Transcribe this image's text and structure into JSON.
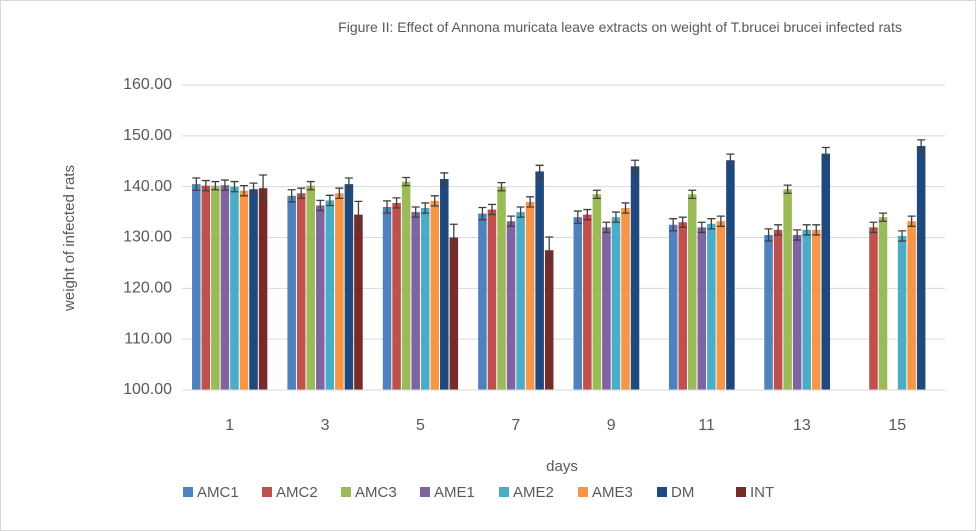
{
  "chart_data": {
    "type": "bar",
    "title": "Figure II: Effect of Annona muricata leave extracts on weight of T.brucei brucei infected rats",
    "xlabel": "days",
    "ylabel": "weight of infected rats",
    "categories": [
      "1",
      "3",
      "5",
      "7",
      "9",
      "11",
      "13",
      "15"
    ],
    "ylim": [
      100,
      160
    ],
    "yticks": [
      {
        "value": 100,
        "label": "100.00"
      },
      {
        "value": 110,
        "label": "110.00"
      },
      {
        "value": 120,
        "label": "120.00"
      },
      {
        "value": 130,
        "label": "130.00"
      },
      {
        "value": 140,
        "label": "140.00"
      },
      {
        "value": 150,
        "label": "150.00"
      },
      {
        "value": 160,
        "label": "160.00"
      }
    ],
    "grid": true,
    "legend": "bottom",
    "series": [
      {
        "name": "AMC1",
        "color": "#4f81bd",
        "values": [
          140.5,
          138.2,
          136,
          134.7,
          134,
          132.5,
          130.5,
          null
        ],
        "errors": [
          1.2,
          1.2,
          1.2,
          1.2,
          1.2,
          1.2,
          1.2,
          null
        ]
      },
      {
        "name": "AMC2",
        "color": "#c0504d",
        "values": [
          140.2,
          138.7,
          136.8,
          135.5,
          134.5,
          133,
          131.5,
          132
        ],
        "errors": [
          1,
          1,
          1,
          1,
          1,
          1,
          1,
          1
        ]
      },
      {
        "name": "AMC3",
        "color": "#9bbb59",
        "values": [
          140.2,
          140.2,
          141,
          140,
          138.5,
          138.5,
          139.5,
          134
        ],
        "errors": [
          0.8,
          0.8,
          0.8,
          0.8,
          0.8,
          0.8,
          0.8,
          0.8
        ]
      },
      {
        "name": "AME1",
        "color": "#8064a2",
        "values": [
          140.3,
          136.3,
          135,
          133.2,
          132,
          132,
          130.5,
          null
        ],
        "errors": [
          1,
          1,
          1,
          1,
          1,
          1,
          1,
          null
        ]
      },
      {
        "name": "AME2",
        "color": "#4bacc6",
        "values": [
          140,
          137.3,
          135.8,
          135,
          134,
          132.7,
          131.5,
          130.3
        ],
        "errors": [
          1,
          1,
          1,
          1,
          1,
          1,
          1,
          1
        ]
      },
      {
        "name": "AME3",
        "color": "#f79646",
        "values": [
          139.2,
          138.7,
          137.2,
          137,
          135.8,
          133.2,
          131.5,
          133.2
        ],
        "errors": [
          1,
          1,
          1,
          1,
          1,
          1,
          1,
          1
        ]
      },
      {
        "name": "DM",
        "color": "#1f497d",
        "values": [
          139.5,
          140.5,
          141.5,
          143,
          144,
          145.2,
          146.5,
          148
        ],
        "errors": [
          1.2,
          1.2,
          1.2,
          1.2,
          1.2,
          1.2,
          1.2,
          1.2
        ]
      },
      {
        "name": "INT",
        "color": "#772c2a",
        "values": [
          139.7,
          134.5,
          130,
          127.5,
          null,
          null,
          null,
          null
        ],
        "errors": [
          2.6,
          2.6,
          2.6,
          2.6,
          null,
          null,
          null,
          null
        ]
      }
    ]
  }
}
